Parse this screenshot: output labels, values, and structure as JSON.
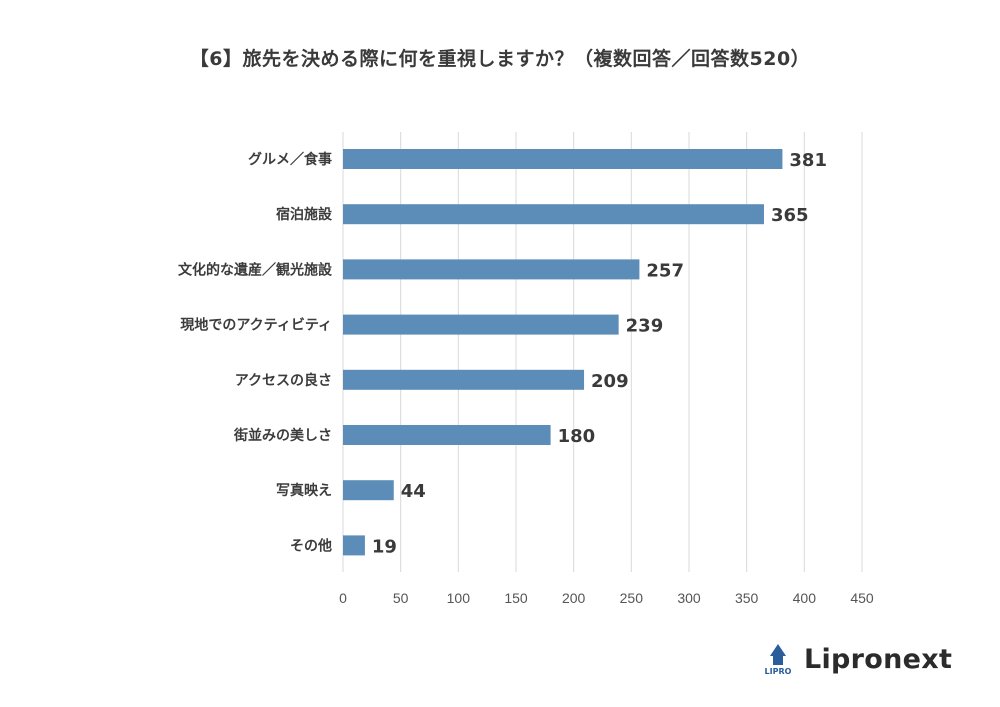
{
  "colors": {
    "bar": "#5b8db8",
    "grid": "#d9d9d9",
    "logo_blue": "#2a5d9a"
  },
  "brand": {
    "name": "Lipronext",
    "mark_text": "LIPRO"
  },
  "chart_data": {
    "type": "bar",
    "orientation": "horizontal",
    "title": "【6】旅先を決める際に何を重視しますか？（複数回答／回答数520）",
    "categories": [
      "グルメ／食事",
      "宿泊施設",
      "文化的な遺産／観光施設",
      "現地でのアクティビティ",
      "アクセスの良さ",
      "街並みの美しさ",
      "写真映え",
      "その他"
    ],
    "values": [
      381,
      365,
      257,
      239,
      209,
      180,
      44,
      19
    ],
    "xlim": [
      0,
      450
    ],
    "xticks": [
      0,
      50,
      100,
      150,
      200,
      250,
      300,
      350,
      400,
      450
    ],
    "grid": true,
    "data_labels": true,
    "legend": "none"
  }
}
